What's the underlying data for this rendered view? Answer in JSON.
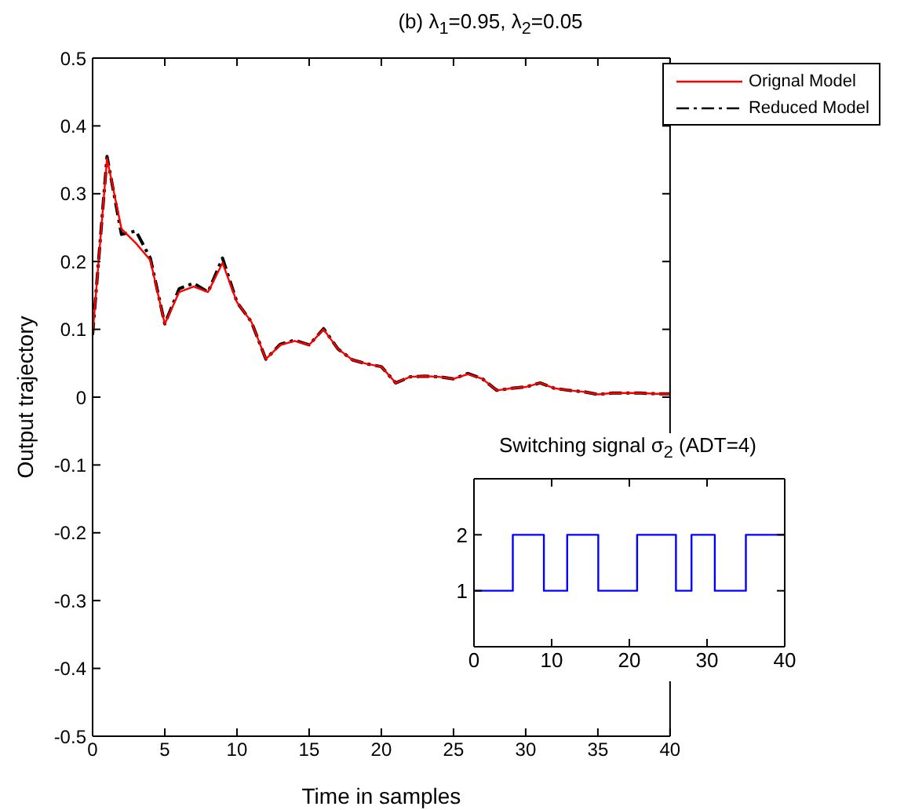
{
  "chart_data": [
    {
      "type": "line",
      "title": "(b)  λ$_{1}$=0.95, λ$_{2}$=0.05",
      "xlabel": "Time in samples",
      "ylabel": "Output trajectory",
      "x": [
        0,
        1,
        2,
        3,
        4,
        5,
        6,
        7,
        8,
        9,
        10,
        11,
        12,
        13,
        14,
        15,
        16,
        17,
        18,
        19,
        20,
        21,
        22,
        23,
        24,
        25,
        26,
        27,
        28,
        29,
        30,
        31,
        32,
        33,
        34,
        35,
        36,
        37,
        38,
        39,
        40
      ],
      "series": [
        {
          "name": "Orignal Model",
          "color": "#ff0000",
          "line_style": "solid",
          "values": [
            0.092,
            0.352,
            0.248,
            0.227,
            0.202,
            0.108,
            0.155,
            0.163,
            0.155,
            0.198,
            0.14,
            0.111,
            0.056,
            0.077,
            0.083,
            0.077,
            0.1,
            0.071,
            0.055,
            0.049,
            0.045,
            0.021,
            0.03,
            0.031,
            0.03,
            0.027,
            0.034,
            0.027,
            0.01,
            0.013,
            0.015,
            0.021,
            0.013,
            0.01,
            0.008,
            0.004,
            0.006,
            0.006,
            0.006,
            0.005,
            0.005
          ]
        },
        {
          "name": "Reduced Model",
          "color": "#000000",
          "line_style": "dashed",
          "values": [
            0.092,
            0.355,
            0.24,
            0.245,
            0.205,
            0.108,
            0.16,
            0.168,
            0.155,
            0.205,
            0.14,
            0.111,
            0.056,
            0.078,
            0.084,
            0.077,
            0.101,
            0.071,
            0.055,
            0.049,
            0.045,
            0.021,
            0.03,
            0.031,
            0.03,
            0.027,
            0.035,
            0.027,
            0.01,
            0.013,
            0.015,
            0.021,
            0.013,
            0.01,
            0.008,
            0.004,
            0.006,
            0.006,
            0.006,
            0.005,
            0.005
          ]
        }
      ],
      "xlim": [
        0,
        40
      ],
      "xticks": [
        0,
        5,
        10,
        15,
        20,
        25,
        30,
        35,
        40
      ],
      "ylim": [
        -0.5,
        0.5
      ],
      "yticks": [
        -0.5,
        -0.4,
        -0.3,
        -0.2,
        -0.1,
        0,
        0.1,
        0.2,
        0.3,
        0.4,
        0.5
      ],
      "legend": "top right",
      "grid": false
    },
    {
      "type": "step",
      "title": "Switching signal σ$_{2}$ (ADT=4)",
      "x": [
        0,
        5,
        9,
        12,
        16,
        21,
        26,
        28,
        31,
        35,
        40
      ],
      "values": [
        1,
        2,
        1,
        2,
        1,
        2,
        1,
        2,
        1,
        2,
        2
      ],
      "color": "#0000ff",
      "xlim": [
        0,
        40
      ],
      "xticks": [
        0,
        10,
        20,
        30,
        40
      ],
      "ylim": [
        0,
        3
      ],
      "yticks": [
        1,
        2
      ],
      "grid": false
    }
  ]
}
